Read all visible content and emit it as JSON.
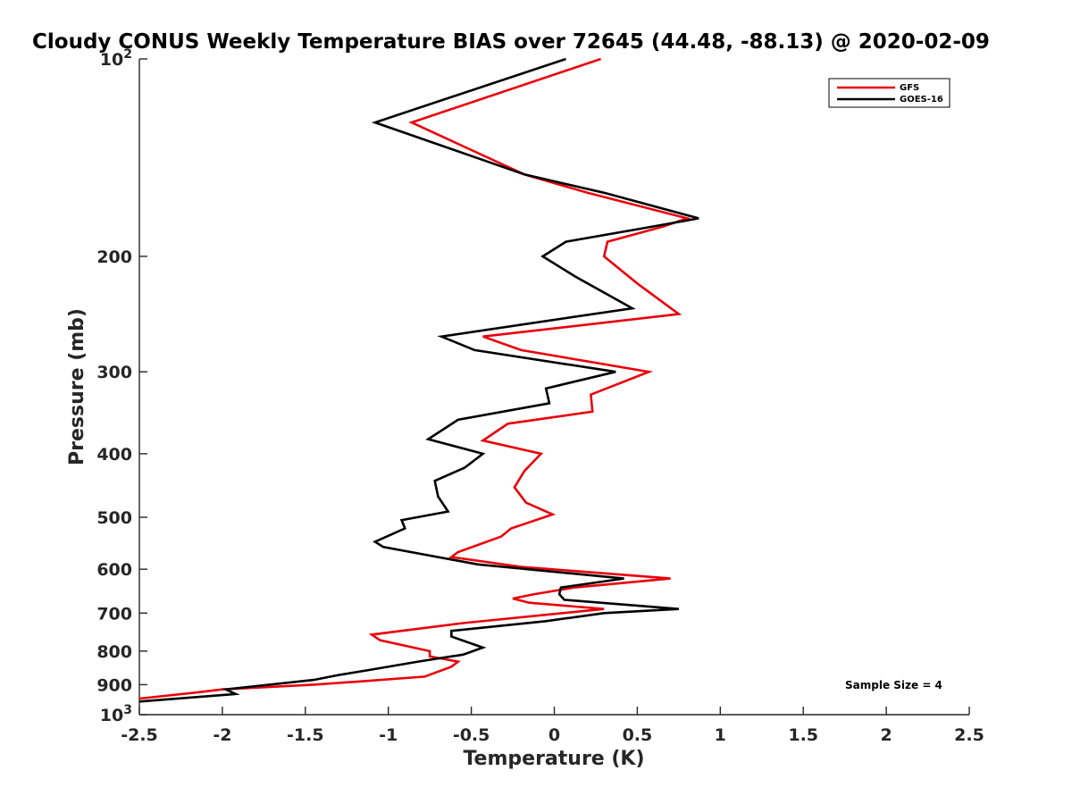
{
  "chart_data": {
    "type": "line",
    "title": "Cloudy CONUS Weekly Temperature BIAS over 72645 (44.48, -88.13) @ 2020-02-09",
    "xlabel": "Temperature (K)",
    "ylabel": "Pressure (mb)",
    "xlim": [
      -2.5,
      2.5
    ],
    "ylim": [
      100,
      1000
    ],
    "yscale": "log",
    "y_reversed": true,
    "grid": false,
    "legend_position": "top-right",
    "x_ticks": [
      "-2.5",
      "-2",
      "-1.5",
      "-1",
      "-0.5",
      "0",
      "0.5",
      "1",
      "1.5",
      "2",
      "2.5"
    ],
    "x_tick_values": [
      -2.5,
      -2,
      -1.5,
      -1,
      -0.5,
      0,
      0.5,
      1,
      1.5,
      2,
      2.5
    ],
    "y_ticks": [
      {
        "value": 100,
        "base": "10",
        "exp": "2"
      },
      {
        "value": 200,
        "label": "200"
      },
      {
        "value": 300,
        "label": "300"
      },
      {
        "value": 400,
        "label": "400"
      },
      {
        "value": 500,
        "label": "500"
      },
      {
        "value": 600,
        "label": "600"
      },
      {
        "value": 700,
        "label": "700"
      },
      {
        "value": 800,
        "label": "800"
      },
      {
        "value": 900,
        "label": "900"
      },
      {
        "value": 1000,
        "base": "10",
        "exp": "3"
      }
    ],
    "annotation": "Sample Size = 4",
    "series": [
      {
        "name": "GFS",
        "color": "#e8000b",
        "points": [
          [
            0.28,
            100
          ],
          [
            -0.86,
            125
          ],
          [
            -0.18,
            150
          ],
          [
            0.2,
            160
          ],
          [
            0.8,
            175
          ],
          [
            0.66,
            180
          ],
          [
            0.32,
            190
          ],
          [
            0.3,
            200
          ],
          [
            0.5,
            220
          ],
          [
            0.75,
            245
          ],
          [
            -0.43,
            265
          ],
          [
            -0.2,
            278
          ],
          [
            0.57,
            300
          ],
          [
            0.22,
            325
          ],
          [
            0.23,
            345
          ],
          [
            -0.28,
            360
          ],
          [
            -0.43,
            382
          ],
          [
            -0.08,
            400
          ],
          [
            -0.18,
            425
          ],
          [
            -0.24,
            450
          ],
          [
            -0.17,
            475
          ],
          [
            -0.01,
            495
          ],
          [
            -0.26,
            520
          ],
          [
            -0.32,
            535
          ],
          [
            -0.58,
            565
          ],
          [
            -0.62,
            575
          ],
          [
            -0.2,
            595
          ],
          [
            0.7,
            620
          ],
          [
            0.12,
            640
          ],
          [
            -0.12,
            655
          ],
          [
            -0.25,
            665
          ],
          [
            -0.15,
            675
          ],
          [
            0.3,
            690
          ],
          [
            -0.55,
            725
          ],
          [
            -1.1,
            755
          ],
          [
            -1.05,
            770
          ],
          [
            -0.75,
            800
          ],
          [
            -0.75,
            815
          ],
          [
            -0.58,
            830
          ],
          [
            -0.62,
            845
          ],
          [
            -0.78,
            875
          ],
          [
            -1.18,
            890
          ],
          [
            -1.45,
            900
          ],
          [
            -2.0,
            915
          ],
          [
            -2.15,
            925
          ],
          [
            -2.5,
            945
          ]
        ]
      },
      {
        "name": "GOES-16",
        "color": "#000000",
        "points": [
          [
            0.07,
            100
          ],
          [
            -1.08,
            125
          ],
          [
            -0.18,
            150
          ],
          [
            0.3,
            160
          ],
          [
            0.87,
            175
          ],
          [
            0.6,
            180
          ],
          [
            0.07,
            190
          ],
          [
            -0.07,
            200
          ],
          [
            0.13,
            215
          ],
          [
            0.47,
            240
          ],
          [
            -0.68,
            265
          ],
          [
            -0.48,
            278
          ],
          [
            0.37,
            300
          ],
          [
            -0.05,
            318
          ],
          [
            -0.03,
            335
          ],
          [
            -0.58,
            355
          ],
          [
            -0.76,
            380
          ],
          [
            -0.43,
            400
          ],
          [
            -0.54,
            420
          ],
          [
            -0.72,
            440
          ],
          [
            -0.7,
            465
          ],
          [
            -0.64,
            490
          ],
          [
            -0.92,
            505
          ],
          [
            -0.9,
            520
          ],
          [
            -1.08,
            545
          ],
          [
            -1.03,
            555
          ],
          [
            -0.46,
            590
          ],
          [
            0.42,
            620
          ],
          [
            0.04,
            640
          ],
          [
            0.03,
            655
          ],
          [
            0.06,
            668
          ],
          [
            0.75,
            690
          ],
          [
            0.3,
            700
          ],
          [
            -0.05,
            720
          ],
          [
            -0.62,
            745
          ],
          [
            -0.62,
            760
          ],
          [
            -0.43,
            790
          ],
          [
            -0.55,
            810
          ],
          [
            -0.82,
            830
          ],
          [
            -1.12,
            855
          ],
          [
            -1.3,
            870
          ],
          [
            -1.45,
            885
          ],
          [
            -1.98,
            915
          ],
          [
            -1.92,
            930
          ],
          [
            -2.5,
            955
          ]
        ]
      }
    ]
  }
}
